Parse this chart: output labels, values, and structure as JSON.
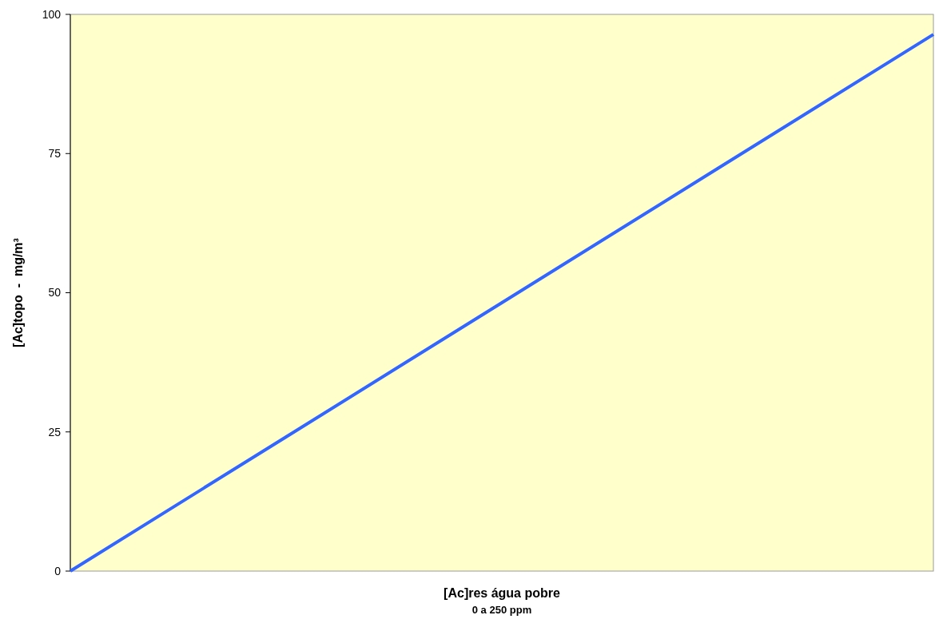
{
  "chart_data": {
    "type": "line",
    "xlabel": "[Ac]res água pobre\n0 a 250 ppm",
    "ylabel": "[Ac]topo  -  mg/m³",
    "categories": [
      null,
      null,
      null,
      null,
      null
    ],
    "series": [
      {
        "color": "#3366ff",
        "values": [
          0,
          24.1,
          48.2,
          72.3,
          96.4
        ]
      }
    ],
    "ylim": [
      0,
      100
    ],
    "yticks": [
      0,
      25,
      50,
      75,
      100
    ],
    "grid": false,
    "marker": "none",
    "line_style": "solid",
    "tick_labels": "y"
  }
}
